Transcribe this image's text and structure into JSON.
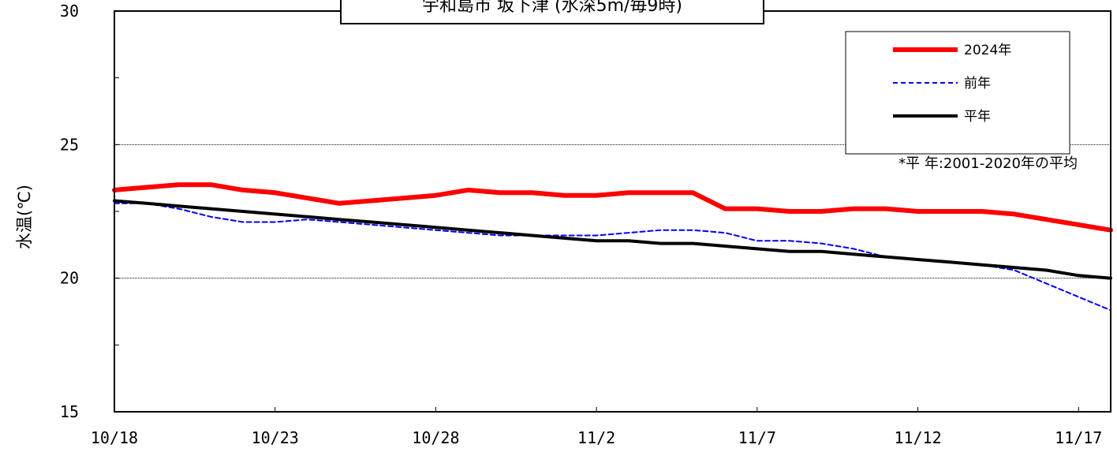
{
  "chart_data": {
    "type": "line",
    "title": "宇和島市 坂下津 (水深5m/毎9時)",
    "xlabel": "",
    "ylabel": "水温(℃)",
    "ylim": [
      15,
      30
    ],
    "yticks": [
      15,
      20,
      25,
      30
    ],
    "x": [
      "10/18",
      "10/19",
      "10/20",
      "10/21",
      "10/22",
      "10/23",
      "10/24",
      "10/25",
      "10/26",
      "10/27",
      "10/28",
      "10/29",
      "10/30",
      "10/31",
      "11/1",
      "11/2",
      "11/3",
      "11/4",
      "11/5",
      "11/6",
      "11/7",
      "11/8",
      "11/9",
      "11/10",
      "11/11",
      "11/12",
      "11/13",
      "11/14",
      "11/15",
      "11/16",
      "11/17",
      "11/18"
    ],
    "xticks": [
      "10/18",
      "10/23",
      "10/28",
      "11/2",
      "11/7",
      "11/12",
      "11/17"
    ],
    "grid_y": [
      20,
      25
    ],
    "legend_position": "top-right",
    "note": "*平 年:2001-2020年の平均",
    "series": [
      {
        "name": "2024年",
        "color": "#ff0000",
        "style": "solid-thick",
        "values": [
          23.3,
          23.4,
          23.5,
          23.5,
          23.3,
          23.2,
          23.0,
          22.8,
          22.9,
          23.0,
          23.1,
          23.3,
          23.2,
          23.2,
          23.1,
          23.1,
          23.2,
          23.2,
          23.2,
          22.6,
          22.6,
          22.5,
          22.5,
          22.6,
          22.6,
          22.5,
          22.5,
          22.5,
          22.4,
          22.2,
          22.0,
          21.8
        ]
      },
      {
        "name": "前年",
        "color": "#0000ff",
        "style": "dashed",
        "values": [
          22.8,
          22.8,
          22.6,
          22.3,
          22.1,
          22.1,
          22.2,
          22.1,
          22.0,
          21.9,
          21.8,
          21.7,
          21.6,
          21.6,
          21.6,
          21.6,
          21.7,
          21.8,
          21.8,
          21.7,
          21.4,
          21.4,
          21.3,
          21.1,
          20.8,
          20.7,
          20.6,
          20.5,
          20.3,
          19.8,
          19.3,
          18.8
        ]
      },
      {
        "name": "平年",
        "color": "#000000",
        "style": "solid",
        "values": [
          22.9,
          22.8,
          22.7,
          22.6,
          22.5,
          22.4,
          22.3,
          22.2,
          22.1,
          22.0,
          21.9,
          21.8,
          21.7,
          21.6,
          21.5,
          21.4,
          21.4,
          21.3,
          21.3,
          21.2,
          21.1,
          21.0,
          21.0,
          20.9,
          20.8,
          20.7,
          20.6,
          20.5,
          20.4,
          20.3,
          20.1,
          20.0
        ]
      }
    ]
  },
  "colors": {
    "background": "#ffffff",
    "axis": "#000000",
    "grid": "#000000"
  }
}
